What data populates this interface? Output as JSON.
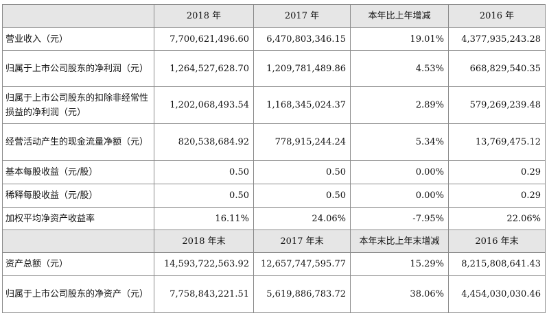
{
  "header1": [
    "",
    "2018 年",
    "2017 年",
    "本年比上年增减",
    "2016 年"
  ],
  "rows1": [
    {
      "label": "营业收入（元）",
      "values": [
        "7,700,621,496.60",
        "6,470,803,346.15",
        "19.01%",
        "4,377,935,243.28"
      ]
    },
    {
      "label": "归属于上市公司股东的净利润（元）",
      "values": [
        "1,264,527,628.70",
        "1,209,781,489.86",
        "4.53%",
        "668,829,540.35"
      ]
    },
    {
      "label": "归属于上市公司股东的扣除非经常性损益的净利润（元）",
      "values": [
        "1,202,068,493.54",
        "1,168,345,024.37",
        "2.89%",
        "579,269,239.48"
      ]
    },
    {
      "label": "经营活动产生的现金流量净额（元）",
      "values": [
        "820,538,684.92",
        "778,915,244.24",
        "5.34%",
        "13,769,475.12"
      ]
    },
    {
      "label": "基本每股收益（元/股）",
      "values": [
        "0.50",
        "0.50",
        "0.00%",
        "0.29"
      ]
    },
    {
      "label": "稀释每股收益（元/股）",
      "values": [
        "0.50",
        "0.50",
        "0.00%",
        "0.29"
      ]
    },
    {
      "label": "加权平均净资产收益率",
      "values": [
        "16.11%",
        "24.06%",
        "-7.95%",
        "22.06%"
      ]
    }
  ],
  "header2": [
    "",
    "2018 年末",
    "2017 年末",
    "本年末比上年末增减",
    "2016 年末"
  ],
  "rows2": [
    {
      "label": "资产总额（元）",
      "values": [
        "14,593,722,563.92",
        "12,657,747,595.77",
        "15.29%",
        "8,215,808,641.43"
      ]
    },
    {
      "label": "归属于上市公司股东的净资产（元）",
      "values": [
        "7,758,843,221.51",
        "5,619,886,783.72",
        "38.06%",
        "4,454,030,030.46"
      ]
    }
  ]
}
